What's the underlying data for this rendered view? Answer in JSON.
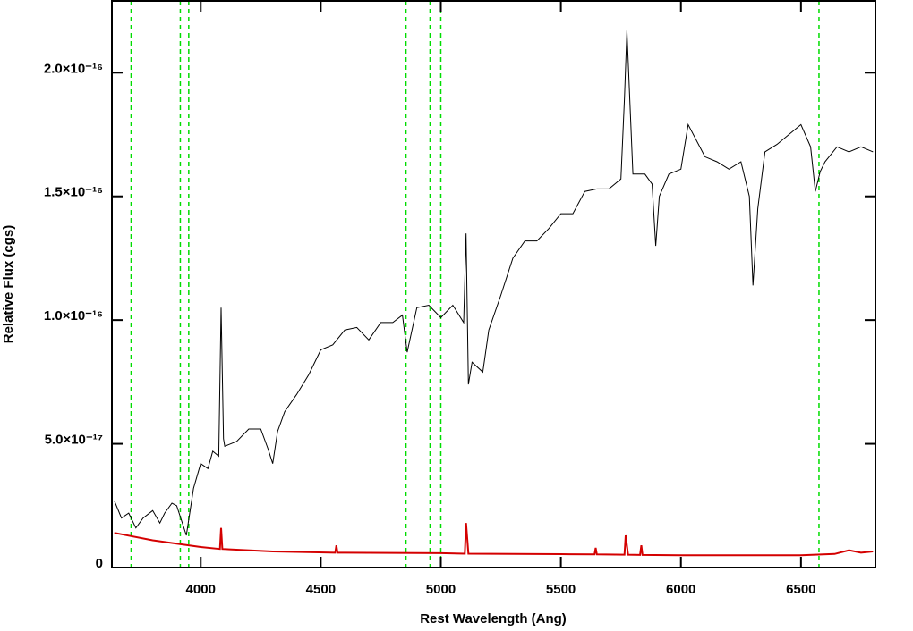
{
  "chart_data": {
    "type": "line",
    "xlabel": "Rest Wavelength (Ang)",
    "ylabel": "Relative Flux (cgs)",
    "xlim": [
      3630,
      6810
    ],
    "ylim": [
      0,
      2.29e-16
    ],
    "xticks": [
      4000,
      4500,
      5000,
      5500,
      6000,
      6500
    ],
    "yticks": [
      0,
      {
        "value": 5e-17,
        "label": "5.0×10⁻¹⁷"
      },
      {
        "value": 1e-16,
        "label": "1.0×10⁻¹⁶"
      },
      {
        "value": 1.5e-16,
        "label": "1.5×10⁻¹⁶"
      },
      {
        "value": 2e-16,
        "label": "2.0×10⁻¹⁶"
      }
    ],
    "vlines": [
      3710,
      3915,
      3950,
      4855,
      4955,
      5000,
      6575
    ],
    "vline_color": "#00dd00",
    "series": [
      {
        "color": "#000000",
        "x": [
          3640,
          3670,
          3700,
          3730,
          3760,
          3800,
          3830,
          3850,
          3880,
          3900,
          3920,
          3940,
          3970,
          4000,
          4030,
          4050,
          4075,
          4085,
          4095,
          4100,
          4150,
          4200,
          4250,
          4280,
          4300,
          4320,
          4350,
          4400,
          4450,
          4500,
          4550,
          4600,
          4650,
          4700,
          4750,
          4800,
          4840,
          4860,
          4900,
          4950,
          5000,
          5050,
          5095,
          5105,
          5115,
          5130,
          5175,
          5200,
          5250,
          5300,
          5350,
          5400,
          5450,
          5500,
          5550,
          5600,
          5650,
          5700,
          5750,
          5765,
          5775,
          5800,
          5850,
          5880,
          5895,
          5910,
          5950,
          6000,
          6030,
          6100,
          6150,
          6200,
          6250,
          6285,
          6300,
          6320,
          6350,
          6400,
          6450,
          6500,
          6540,
          6560,
          6580,
          6600,
          6650,
          6700,
          6750,
          6800
        ],
        "values": [
          2.7e-17,
          2e-17,
          2.2e-17,
          1.6e-17,
          2e-17,
          2.3e-17,
          1.8e-17,
          2.2e-17,
          2.6e-17,
          2.5e-17,
          1.9e-17,
          1.3e-17,
          3.2e-17,
          4.2e-17,
          4e-17,
          4.7e-17,
          4.5e-17,
          1.05e-16,
          5.2e-17,
          4.9e-17,
          5.1e-17,
          5.6e-17,
          5.6e-17,
          4.8e-17,
          4.2e-17,
          5.5e-17,
          6.3e-17,
          7e-17,
          7.8e-17,
          8.8e-17,
          9e-17,
          9.6e-17,
          9.7e-17,
          9.2e-17,
          9.9e-17,
          9.9e-17,
          1.02e-16,
          8.7e-17,
          1.05e-16,
          1.06e-16,
          1.01e-16,
          1.06e-16,
          9.9e-17,
          1.35e-16,
          7.4e-17,
          8.3e-17,
          7.9e-17,
          9.6e-17,
          1.1e-16,
          1.25e-16,
          1.32e-16,
          1.32e-16,
          1.37e-16,
          1.43e-16,
          1.43e-16,
          1.52e-16,
          1.53e-16,
          1.53e-16,
          1.57e-16,
          1.9e-16,
          2.17e-16,
          1.59e-16,
          1.59e-16,
          1.55e-16,
          1.3e-16,
          1.5e-16,
          1.59e-16,
          1.61e-16,
          1.79e-16,
          1.66e-16,
          1.64e-16,
          1.61e-16,
          1.64e-16,
          1.5e-16,
          1.14e-16,
          1.45e-16,
          1.68e-16,
          1.71e-16,
          1.75e-16,
          1.79e-16,
          1.7e-16,
          1.52e-16,
          1.6e-16,
          1.64e-16,
          1.7e-16,
          1.68e-16,
          1.7e-16,
          1.68e-16
        ]
      },
      {
        "color": "#d40000",
        "x": [
          3640,
          3800,
          4000,
          4080,
          4085,
          4090,
          4300,
          4560,
          4565,
          4570,
          4600,
          5000,
          5100,
          5105,
          5115,
          5500,
          5640,
          5645,
          5650,
          5765,
          5770,
          5780,
          5830,
          5835,
          5840,
          6000,
          6500,
          6640,
          6700,
          6750,
          6800
        ],
        "values": [
          1.4e-17,
          1.1e-17,
          8.3e-18,
          7.5e-18,
          1.6e-17,
          7.5e-18,
          6.5e-18,
          6e-18,
          9e-18,
          6e-18,
          6e-18,
          5.8e-18,
          5.6e-18,
          1.8e-17,
          5.6e-18,
          5.4e-18,
          5.3e-18,
          8e-18,
          5.3e-18,
          5.2e-18,
          1.3e-17,
          5.2e-18,
          5.1e-18,
          9e-18,
          5.1e-18,
          5e-18,
          5e-18,
          5.5e-18,
          7e-18,
          6e-18,
          6.5e-18
        ]
      }
    ]
  }
}
